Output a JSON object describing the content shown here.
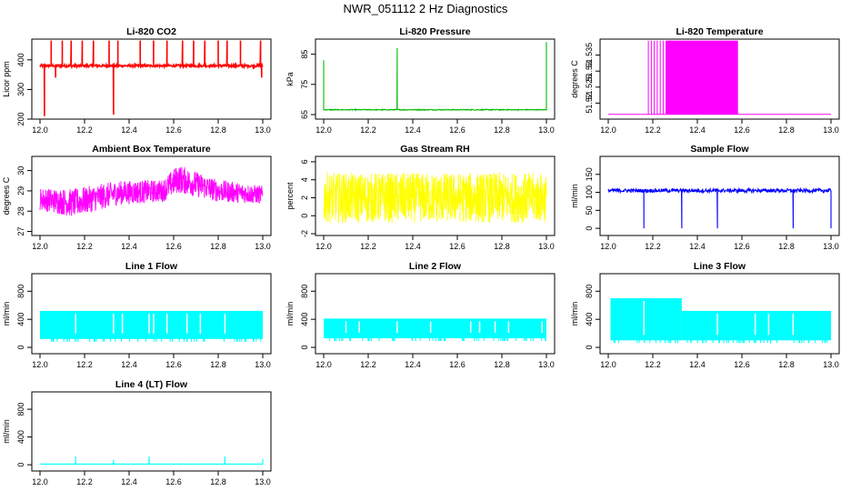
{
  "figure_title": "NWR_051112  2 Hz Diagnostics",
  "colors": {
    "co2": "#ff0000",
    "pressure": "#00bb00",
    "temperature": "#ff00ff",
    "ambient": "#ff00ff",
    "rh": "#ffff00",
    "sample": "#0000ff",
    "lineflow": "#00ffff"
  },
  "chart_data": [
    {
      "type": "line",
      "id": "co2",
      "title": "Li-820 CO2",
      "ylabel": "Licor ppm",
      "color": "co2",
      "ylim": [
        200,
        470
      ],
      "yticks": [
        200,
        300,
        400
      ],
      "xlim": [
        12.0,
        13.0
      ],
      "xticks": [
        12.0,
        12.2,
        12.4,
        12.6,
        12.8,
        13.0
      ],
      "x_tick_labels": [
        "12.0",
        "12.2",
        "12.4",
        "12.6",
        "12.8",
        "13.0"
      ],
      "baseline": 380,
      "noise": 4,
      "spikes": [
        [
          12.02,
          210
        ],
        [
          12.05,
          465
        ],
        [
          12.07,
          340
        ],
        [
          12.1,
          465
        ],
        [
          12.14,
          465
        ],
        [
          12.19,
          465
        ],
        [
          12.24,
          465
        ],
        [
          12.31,
          465
        ],
        [
          12.33,
          215
        ],
        [
          12.35,
          465
        ],
        [
          12.45,
          465
        ],
        [
          12.51,
          465
        ],
        [
          12.57,
          465
        ],
        [
          12.64,
          465
        ],
        [
          12.69,
          465
        ],
        [
          12.74,
          465
        ],
        [
          12.8,
          465
        ],
        [
          12.84,
          465
        ],
        [
          12.9,
          465
        ],
        [
          12.99,
          465
        ],
        [
          12.995,
          340
        ]
      ]
    },
    {
      "type": "line",
      "id": "pressure",
      "title": "Li-820 Pressure",
      "ylabel": "kPa",
      "color": "pressure",
      "ylim": [
        63.5,
        90
      ],
      "yticks": [
        65,
        75,
        85
      ],
      "xlim": [
        12.0,
        13.0
      ],
      "xticks": [
        12.0,
        12.2,
        12.4,
        12.6,
        12.8,
        13.0
      ],
      "x_tick_labels": [
        "12.0",
        "12.2",
        "12.4",
        "12.6",
        "12.8",
        "13.0"
      ],
      "baseline": 66.6,
      "noise": 0.15,
      "spikes": [
        [
          12.0,
          83.0
        ],
        [
          12.33,
          87.0
        ],
        [
          13.0,
          89.0
        ]
      ]
    },
    {
      "type": "band",
      "id": "temperature",
      "title": "Li-820 Temperature",
      "ylabel": "degrees C",
      "color": "temperature",
      "ylim": [
        51.515,
        51.54
      ],
      "yticks": [
        51.52,
        51.525,
        51.53,
        51.535
      ],
      "xlim": [
        12.0,
        13.0
      ],
      "xticks": [
        12.0,
        12.2,
        12.4,
        12.6,
        12.8,
        13.0
      ],
      "x_tick_labels": [
        "12.0",
        "12.2",
        "12.4",
        "12.6",
        "12.8",
        "13.0"
      ],
      "low": 51.5165,
      "high": 51.5395,
      "sparse_range": [
        12.18,
        12.26
      ],
      "dense_range": [
        12.26,
        12.58
      ]
    },
    {
      "type": "noise",
      "id": "ambient",
      "title": "Ambient Box Temperature",
      "ylabel": "degrees C",
      "color": "ambient",
      "ylim": [
        26.8,
        30.7
      ],
      "yticks": [
        27,
        28,
        29,
        30
      ],
      "xlim": [
        12.0,
        13.0
      ],
      "xticks": [
        12.0,
        12.2,
        12.4,
        12.6,
        12.8,
        13.0
      ],
      "x_tick_labels": [
        "12.0",
        "12.2",
        "12.4",
        "12.6",
        "12.8",
        "13.0"
      ],
      "segments": [
        [
          12.0,
          28.6,
          0.55
        ],
        [
          12.15,
          28.4,
          0.7
        ],
        [
          12.35,
          28.9,
          0.6
        ],
        [
          12.55,
          29.0,
          0.55
        ],
        [
          12.62,
          29.6,
          0.7
        ],
        [
          12.8,
          29.0,
          0.55
        ],
        [
          13.0,
          28.8,
          0.45
        ]
      ]
    },
    {
      "type": "noise",
      "id": "rh",
      "title": "Gas Stream RH",
      "ylabel": "percent",
      "color": "rh",
      "ylim": [
        -2.2,
        6.6
      ],
      "yticks": [
        -2,
        0,
        2,
        4,
        6
      ],
      "xlim": [
        12.0,
        13.0
      ],
      "xticks": [
        12.0,
        12.2,
        12.4,
        12.6,
        12.8,
        13.0
      ],
      "x_tick_labels": [
        "12.0",
        "12.2",
        "12.4",
        "12.6",
        "12.8",
        "13.0"
      ],
      "segments": [
        [
          12.0,
          2.0,
          2.8
        ],
        [
          13.0,
          2.0,
          2.8
        ]
      ]
    },
    {
      "type": "line",
      "id": "sample",
      "title": "Sample Flow",
      "ylabel": "ml/min",
      "color": "sample",
      "ylim": [
        -20,
        200
      ],
      "yticks": [
        0,
        50,
        100,
        150
      ],
      "xlim": [
        12.0,
        13.0
      ],
      "xticks": [
        12.0,
        12.2,
        12.4,
        12.6,
        12.8,
        13.0
      ],
      "x_tick_labels": [
        "12.0",
        "12.2",
        "12.4",
        "12.6",
        "12.8",
        "13.0"
      ],
      "baseline": 105,
      "noise": 5,
      "spikes": [
        [
          12.16,
          0
        ],
        [
          12.33,
          0
        ],
        [
          12.49,
          0
        ],
        [
          12.83,
          0
        ],
        [
          13.0,
          0
        ]
      ]
    },
    {
      "type": "flow",
      "id": "line1",
      "title": "Line 1 Flow",
      "ylabel": "ml/min",
      "color": "lineflow",
      "ylim": [
        -90,
        1050
      ],
      "yticks": [
        0,
        400,
        800
      ],
      "xlim": [
        12.0,
        13.0
      ],
      "xticks": [
        12.0,
        12.2,
        12.4,
        12.6,
        12.8,
        13.0
      ],
      "x_tick_labels": [
        "12.0",
        "12.2",
        "12.4",
        "12.6",
        "12.8",
        "13.0"
      ],
      "low": 120,
      "levels": [
        [
          12.0,
          13.0,
          520
        ]
      ],
      "gaps": [
        12.16,
        12.33,
        12.37,
        12.49,
        12.51,
        12.57,
        12.66,
        12.72,
        12.83
      ]
    },
    {
      "type": "flow",
      "id": "line2",
      "title": "Line 2 Flow",
      "ylabel": "ml/min",
      "color": "lineflow",
      "ylim": [
        -90,
        1050
      ],
      "yticks": [
        0,
        400,
        800
      ],
      "xlim": [
        12.0,
        13.0
      ],
      "xticks": [
        12.0,
        12.2,
        12.4,
        12.6,
        12.8,
        13.0
      ],
      "x_tick_labels": [
        "12.0",
        "12.2",
        "12.4",
        "12.6",
        "12.8",
        "13.0"
      ],
      "low": 130,
      "levels": [
        [
          12.0,
          13.0,
          410
        ]
      ],
      "gaps": [
        12.1,
        12.16,
        12.33,
        12.48,
        12.66,
        12.7,
        12.77,
        12.83,
        12.98
      ]
    },
    {
      "type": "flow",
      "id": "line3",
      "title": "Line 3 Flow",
      "ylabel": "ml/min",
      "color": "lineflow",
      "ylim": [
        -90,
        1050
      ],
      "yticks": [
        0,
        400,
        800
      ],
      "xlim": [
        12.0,
        13.0
      ],
      "xticks": [
        12.0,
        12.2,
        12.4,
        12.6,
        12.8,
        13.0
      ],
      "x_tick_labels": [
        "12.0",
        "12.2",
        "12.4",
        "12.6",
        "12.8",
        "13.0"
      ],
      "low": 100,
      "levels": [
        [
          12.01,
          12.33,
          700
        ],
        [
          12.33,
          13.0,
          520
        ]
      ],
      "gaps": [
        12.16,
        12.49,
        12.66,
        12.72,
        12.83
      ]
    },
    {
      "type": "line",
      "id": "line4",
      "title": "Line 4 (LT) Flow",
      "ylabel": "ml/min",
      "color": "lineflow",
      "ylim": [
        -90,
        1050
      ],
      "yticks": [
        0,
        400,
        800
      ],
      "xlim": [
        12.0,
        13.0
      ],
      "xticks": [
        12.0,
        12.2,
        12.4,
        12.6,
        12.8,
        13.0
      ],
      "x_tick_labels": [
        "12.0",
        "12.2",
        "12.4",
        "12.6",
        "12.8",
        "13.0"
      ],
      "baseline": 10,
      "noise": 2,
      "spikes": [
        [
          12.16,
          120
        ],
        [
          12.33,
          70
        ],
        [
          12.49,
          120
        ],
        [
          12.83,
          120
        ],
        [
          13.0,
          80
        ]
      ]
    }
  ]
}
